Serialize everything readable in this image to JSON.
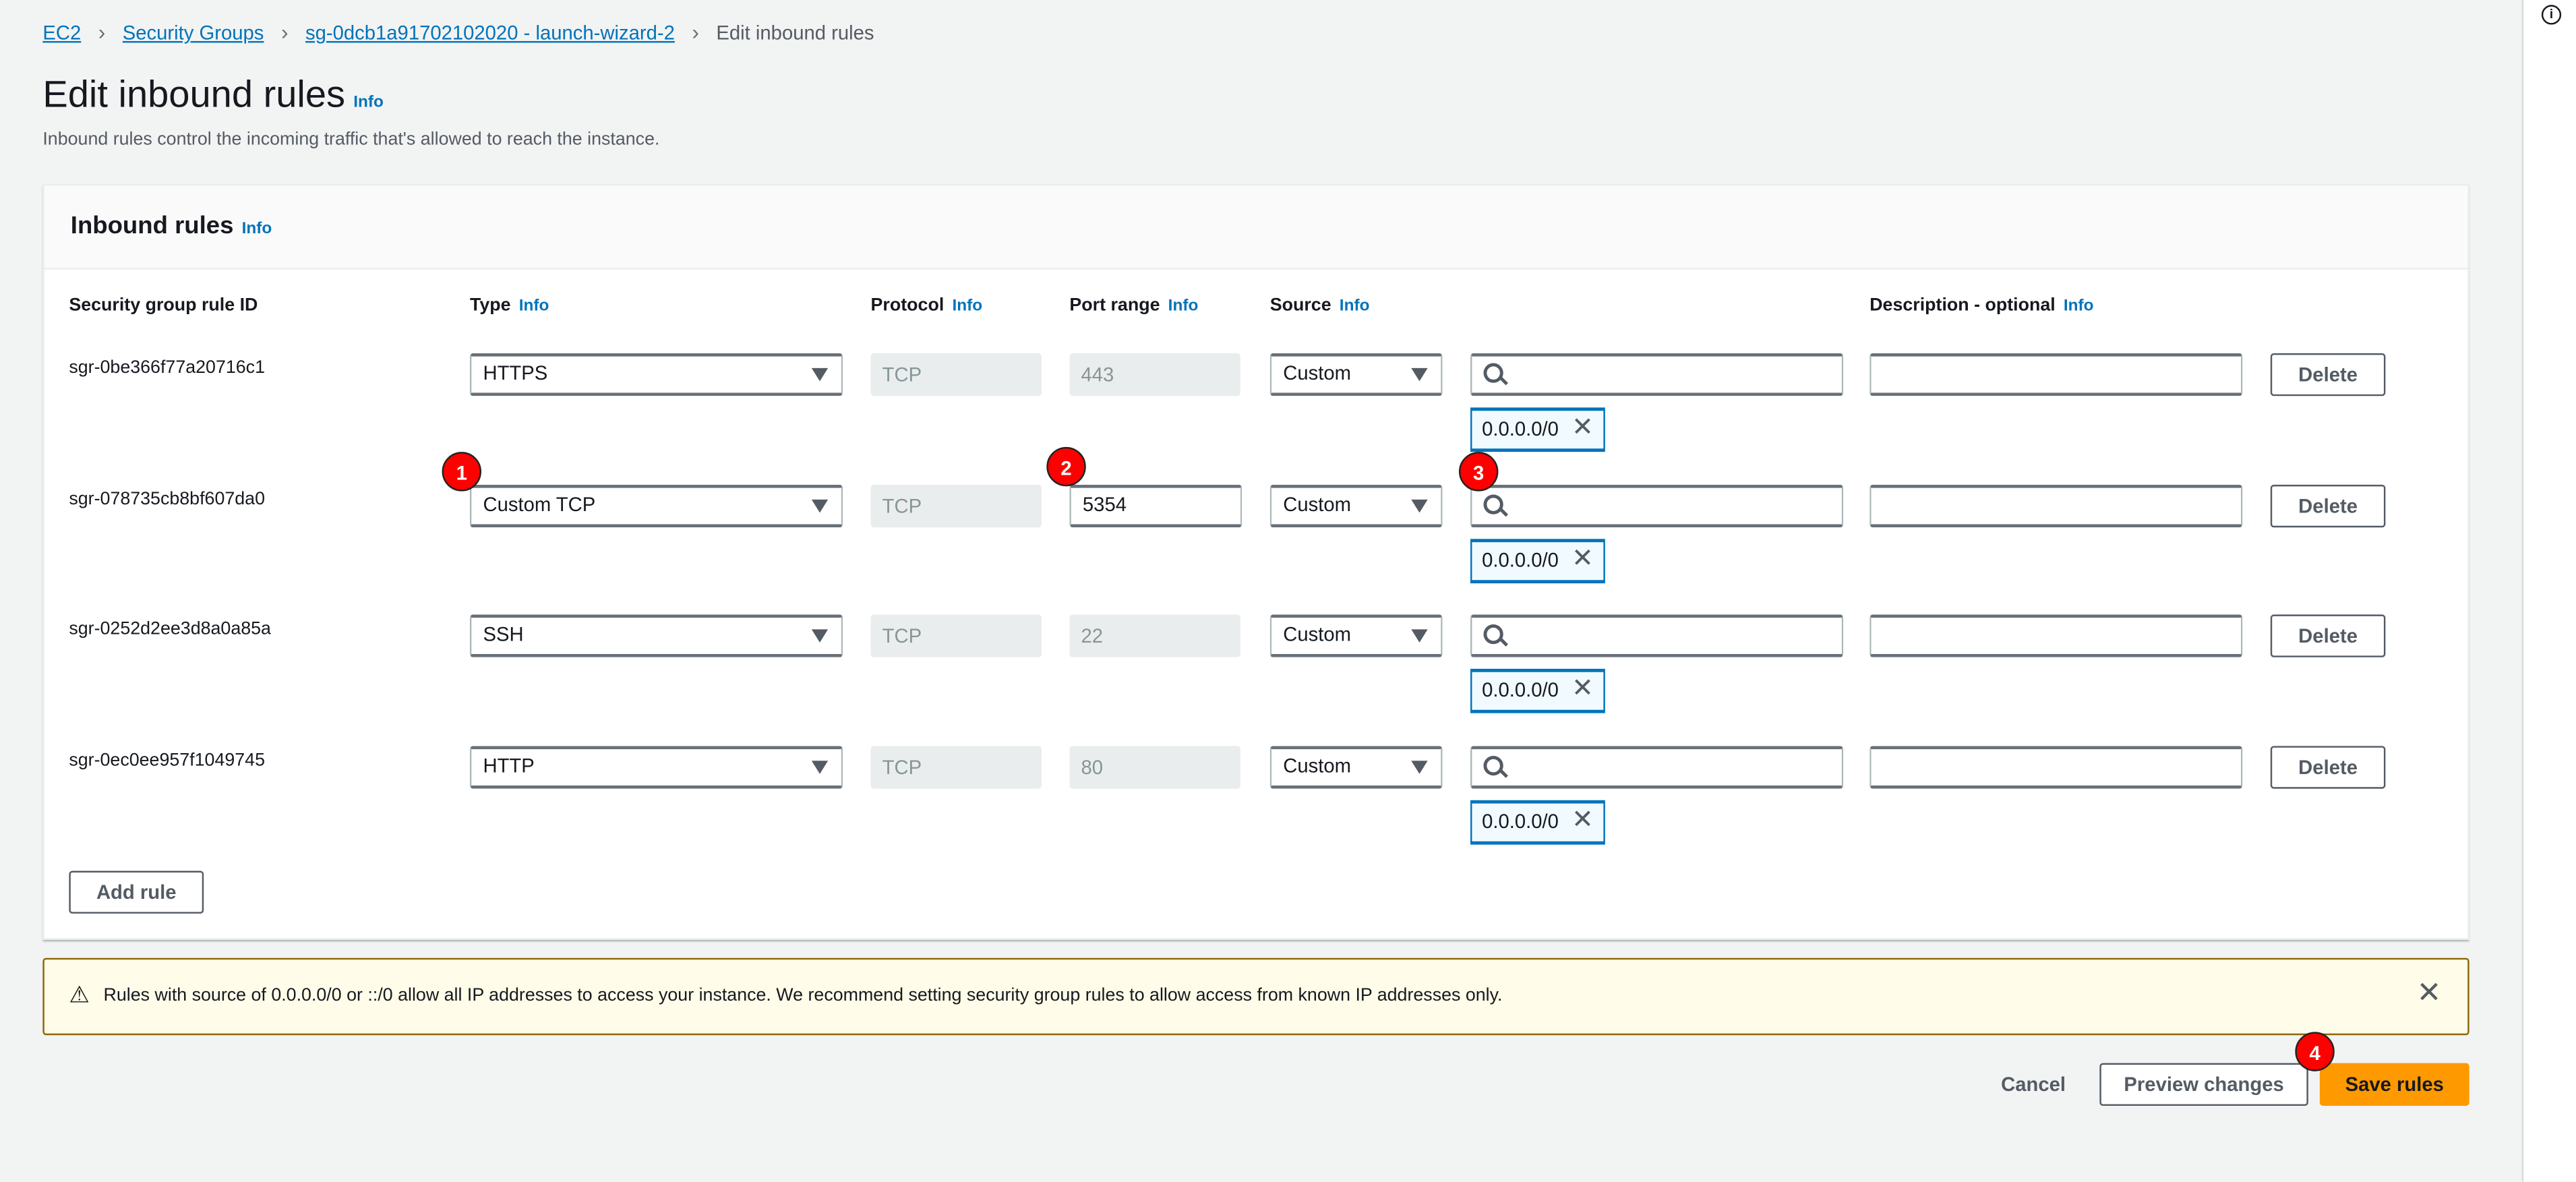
{
  "breadcrumb": [
    {
      "label": "EC2"
    },
    {
      "label": "Security Groups"
    },
    {
      "label": "sg-0dcb1a91702102020 - launch-wizard-2"
    },
    {
      "label": "Edit inbound rules"
    }
  ],
  "page": {
    "title": "Edit inbound rules",
    "info": "Info",
    "subtitle": "Inbound rules control the incoming traffic that's allowed to reach the instance."
  },
  "panel": {
    "title": "Inbound rules",
    "info": "Info",
    "columns": [
      {
        "label": "Security group rule ID",
        "info": ""
      },
      {
        "label": "Type",
        "info": "Info"
      },
      {
        "label": "Protocol",
        "info": "Info"
      },
      {
        "label": "Port range",
        "info": "Info"
      },
      {
        "label": "Source",
        "info": "Info"
      },
      {
        "label": "Description - optional",
        "info": "Info"
      }
    ],
    "rows": [
      {
        "id": "sgr-0be366f77a20716c1",
        "type": "HTTPS",
        "protocol": "TCP",
        "port": "443",
        "port_editable": false,
        "source": "Custom",
        "search": "",
        "cidr": "0.0.0.0/0",
        "description": "",
        "delete": "Delete"
      },
      {
        "id": "sgr-078735cb8bf607da0",
        "type": "Custom TCP",
        "protocol": "TCP",
        "port": "5354",
        "port_editable": true,
        "source": "Custom",
        "search": "",
        "cidr": "0.0.0.0/0",
        "description": "",
        "delete": "Delete"
      },
      {
        "id": "sgr-0252d2ee3d8a0a85a",
        "type": "SSH",
        "protocol": "TCP",
        "port": "22",
        "port_editable": false,
        "source": "Custom",
        "search": "",
        "cidr": "0.0.0.0/0",
        "description": "",
        "delete": "Delete"
      },
      {
        "id": "sgr-0ec0ee957f1049745",
        "type": "HTTP",
        "protocol": "TCP",
        "port": "80",
        "port_editable": false,
        "source": "Custom",
        "search": "",
        "cidr": "0.0.0.0/0",
        "description": "",
        "delete": "Delete"
      }
    ],
    "add_rule": "Add rule"
  },
  "warning": {
    "text": "Rules with source of 0.0.0.0/0 or ::/0 allow all IP addresses to access your instance. We recommend setting security group rules to allow access from known IP addresses only."
  },
  "footer": {
    "cancel": "Cancel",
    "preview": "Preview changes",
    "save": "Save rules"
  },
  "badges": [
    "1",
    "2",
    "3",
    "4"
  ],
  "colors": {
    "accent": "#0073bb",
    "primary_button": "#ff9900",
    "warning_bg": "#fffce9",
    "warning_border": "#8d6605",
    "badge": "#ff0000"
  }
}
